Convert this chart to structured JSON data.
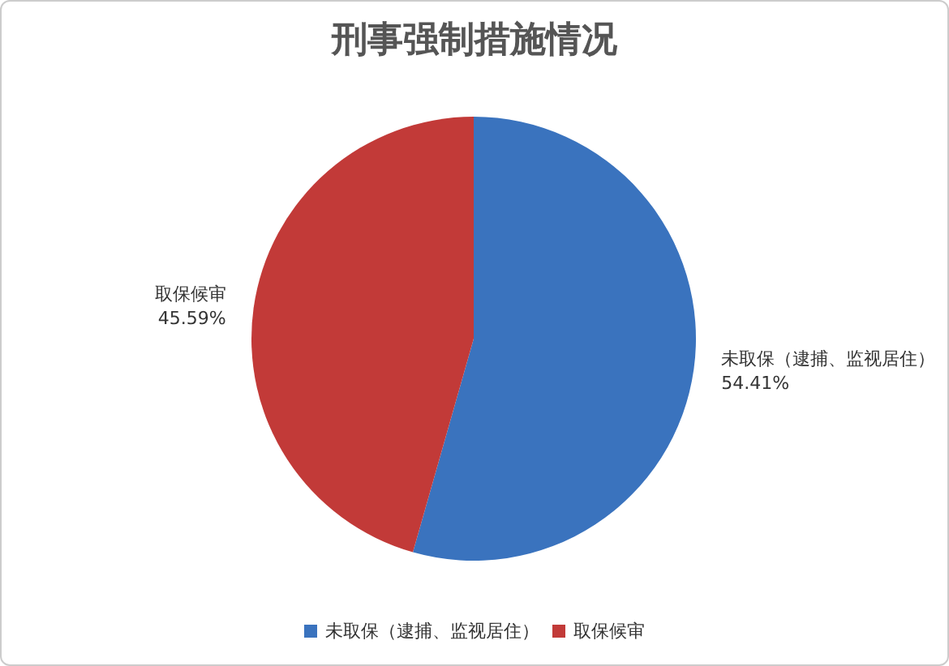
{
  "chart_data": {
    "type": "pie",
    "title": "刑事强制措施情况",
    "categories": [
      "未取保（逮捕、监视居住）",
      "取保候审"
    ],
    "values": [
      54.41,
      45.59
    ],
    "value_labels": [
      "54.41%",
      "45.59%"
    ],
    "colors": [
      "#3a73be",
      "#c23a38"
    ],
    "legend": "bottom"
  }
}
